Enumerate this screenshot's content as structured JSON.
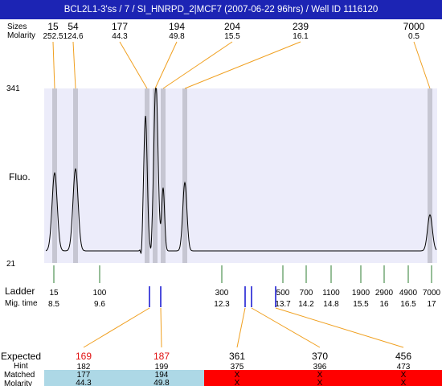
{
  "title": "BCL2L1-3'ss / 7 / SI_HNRPD_2|MCF7 (2007-06-22 96hrs) / Well ID 1116120",
  "labels": {
    "sizes": "Sizes",
    "molarity": "Molarity",
    "fluo": "Fluo.",
    "ladder": "Ladder",
    "mig_time": "Mig. time",
    "expected": "Expected",
    "hint": "Hint",
    "matched": "Matched",
    "molarity_bottom": "Molarity"
  },
  "colors": {
    "title_bg": "#1c24b4",
    "plot_bg": "#ececfa",
    "peak_band": "#c6c6d2",
    "connector": "#f0a020",
    "ladder_tick": "#2e7d32",
    "marker_blue": "#1010d0",
    "matched_bg": "#add8e6",
    "unmatched_bg": "#ff0000",
    "expected_red": "#e01010"
  },
  "chart_data": {
    "type": "line",
    "title": "BCL2L1-3'ss / 7 / SI_HNRPD_2|MCF7 (2007-06-22 96hrs) / Well ID 1116120",
    "ylabel": "Fluo.",
    "ylim": [
      21,
      341
    ],
    "y_ticks": [
      "341",
      "21"
    ],
    "peaks": [
      {
        "size": "15",
        "molarity": "252.5"
      },
      {
        "size": "54",
        "molarity": "124.6"
      },
      {
        "size": "177",
        "molarity": "44.3"
      },
      {
        "size": "194",
        "molarity": "49.8"
      },
      {
        "size": "204",
        "molarity": "15.5"
      },
      {
        "size": "239",
        "molarity": "16.1"
      },
      {
        "size": "7000",
        "molarity": "0.5"
      }
    ],
    "ladder": [
      {
        "size": "15",
        "mig_time": "8.5"
      },
      {
        "size": "100",
        "mig_time": "9.6"
      },
      {
        "size": "300",
        "mig_time": "12.3"
      },
      {
        "size": "500",
        "mig_time": "13.7"
      },
      {
        "size": "700",
        "mig_time": "14.2"
      },
      {
        "size": "1100",
        "mig_time": "14.8"
      },
      {
        "size": "1900",
        "mig_time": "15.5"
      },
      {
        "size": "2900",
        "mig_time": "16"
      },
      {
        "size": "4900",
        "mig_time": "16.5"
      },
      {
        "size": "7000",
        "mig_time": "17"
      }
    ],
    "expected": [
      {
        "expected": "169",
        "hint": "182",
        "matched": "177",
        "molarity": "44.3",
        "found": true
      },
      {
        "expected": "187",
        "hint": "199",
        "matched": "194",
        "molarity": "49.8",
        "found": true
      },
      {
        "expected": "361",
        "hint": "375",
        "matched": "X",
        "molarity": "X",
        "found": false
      },
      {
        "expected": "370",
        "hint": "396",
        "matched": "X",
        "molarity": "X",
        "found": false
      },
      {
        "expected": "456",
        "hint": "473",
        "matched": "X",
        "molarity": "X",
        "found": false
      }
    ]
  }
}
